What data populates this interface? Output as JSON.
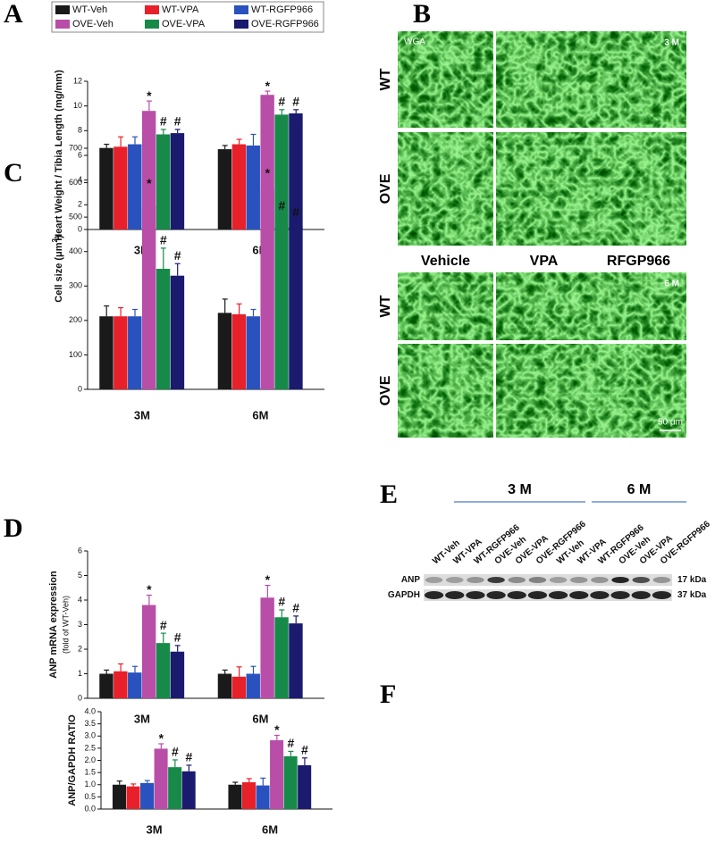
{
  "chart_data": [
    {
      "type": "bar",
      "ylabel": "Heart Weight / Tibia Length (mg/mm)",
      "categories": [
        "3M",
        "6M"
      ],
      "ylim": [
        0,
        12
      ],
      "yticks": [
        0,
        2,
        4,
        6,
        8,
        10,
        12
      ],
      "series": [
        {
          "name": "WT-Veh",
          "color": "#1a1a1a",
          "values": [
            6.6,
            6.5
          ],
          "errors": [
            0.3,
            0.3
          ]
        },
        {
          "name": "WT-VPA",
          "color": "#e8202a",
          "values": [
            6.7,
            6.9
          ],
          "errors": [
            0.8,
            0.4
          ]
        },
        {
          "name": "WT-RGFP966",
          "color": "#2a52be",
          "values": [
            6.9,
            6.8
          ],
          "errors": [
            0.6,
            0.9
          ]
        },
        {
          "name": "OVE-Veh",
          "color": "#b84ea8",
          "values": [
            9.6,
            10.9
          ],
          "errors": [
            0.8,
            0.3
          ],
          "annotations": [
            "*",
            "*"
          ]
        },
        {
          "name": "OVE-VPA",
          "color": "#178a4a",
          "values": [
            7.7,
            9.3
          ],
          "errors": [
            0.4,
            0.4
          ],
          "annotations": [
            "#",
            "#"
          ]
        },
        {
          "name": "OVE-RGFP966",
          "color": "#1a1a6e",
          "values": [
            7.8,
            9.4
          ],
          "errors": [
            0.3,
            0.3
          ],
          "annotations": [
            "#",
            "#"
          ]
        }
      ]
    },
    {
      "type": "bar",
      "ylabel": "Cell size (μm",
      "ylabel_superscript": "2",
      "ylabel_suffix": ")",
      "categories": [
        "3M",
        "6M"
      ],
      "ylim": [
        0,
        700
      ],
      "yticks": [
        0,
        100,
        200,
        300,
        400,
        500,
        600,
        700
      ],
      "series": [
        {
          "color": "#1a1a1a",
          "values": [
            212,
            222
          ],
          "errors": [
            30,
            40
          ]
        },
        {
          "color": "#e8202a",
          "values": [
            212,
            218
          ],
          "errors": [
            25,
            30
          ]
        },
        {
          "color": "#2a52be",
          "values": [
            212,
            212
          ],
          "errors": [
            20,
            20
          ]
        },
        {
          "color": "#b84ea8",
          "values": [
            533,
            582
          ],
          "errors": [
            50,
            30
          ],
          "annotations": [
            "*",
            "*"
          ]
        },
        {
          "color": "#178a4a",
          "values": [
            350,
            470
          ],
          "errors": [
            60,
            40
          ],
          "annotations": [
            "#",
            "#"
          ]
        },
        {
          "color": "#1a1a6e",
          "values": [
            330,
            470
          ],
          "errors": [
            35,
            20
          ],
          "annotations": [
            "#",
            "#"
          ]
        }
      ]
    },
    {
      "type": "bar",
      "ylabel": "ANP mRNA expression",
      "ylabel_note": "(fold of WT-Veh)",
      "categories": [
        "3M",
        "6M"
      ],
      "ylim": [
        0,
        6
      ],
      "yticks": [
        0,
        1,
        2,
        3,
        4,
        5,
        6
      ],
      "series": [
        {
          "color": "#1a1a1a",
          "values": [
            1.0,
            1.0
          ],
          "errors": [
            0.15,
            0.15
          ]
        },
        {
          "color": "#e8202a",
          "values": [
            1.1,
            0.88
          ],
          "errors": [
            0.3,
            0.4
          ]
        },
        {
          "color": "#2a52be",
          "values": [
            1.05,
            1.0
          ],
          "errors": [
            0.25,
            0.3
          ]
        },
        {
          "color": "#b84ea8",
          "values": [
            3.8,
            4.1
          ],
          "errors": [
            0.4,
            0.5
          ],
          "annotations": [
            "*",
            "*"
          ]
        },
        {
          "color": "#178a4a",
          "values": [
            2.25,
            3.3
          ],
          "errors": [
            0.4,
            0.3
          ],
          "annotations": [
            "#",
            "#"
          ]
        },
        {
          "color": "#1a1a6e",
          "values": [
            1.9,
            3.05
          ],
          "errors": [
            0.25,
            0.3
          ],
          "annotations": [
            "#",
            "#"
          ]
        }
      ]
    },
    {
      "type": "bar",
      "ylabel": "ANP/GAPDH RATIO",
      "categories": [
        "3M",
        "6M"
      ],
      "ylim": [
        0,
        4
      ],
      "yticks": [
        {
          "value": 0,
          "label": "0.0"
        },
        0.5,
        {
          "value": 1,
          "label": "1.0"
        },
        1.5,
        {
          "value": 2,
          "label": "2.0"
        },
        2.5,
        {
          "value": 3,
          "label": "3.0"
        },
        3.5,
        {
          "value": 4,
          "label": "4.0"
        }
      ],
      "series": [
        {
          "color": "#1a1a1a",
          "values": [
            1.0,
            1.0
          ],
          "errors": [
            0.15,
            0.1
          ]
        },
        {
          "color": "#e8202a",
          "values": [
            0.93,
            1.1
          ],
          "errors": [
            0.1,
            0.15
          ]
        },
        {
          "color": "#2a52be",
          "values": [
            1.07,
            0.97
          ],
          "errors": [
            0.1,
            0.3
          ]
        },
        {
          "color": "#b84ea8",
          "values": [
            2.48,
            2.83
          ],
          "errors": [
            0.2,
            0.2
          ],
          "annotations": [
            "*",
            "*"
          ]
        },
        {
          "color": "#178a4a",
          "values": [
            1.72,
            2.17
          ],
          "errors": [
            0.3,
            0.2
          ],
          "annotations": [
            "#",
            "#"
          ]
        },
        {
          "color": "#1a1a6e",
          "values": [
            1.55,
            1.8
          ],
          "errors": [
            0.25,
            0.3
          ],
          "annotations": [
            "#",
            "#"
          ]
        }
      ]
    }
  ],
  "figure": {
    "panels": [
      "A",
      "B",
      "C",
      "D",
      "E",
      "F"
    ],
    "micrographs": {
      "stain": "WGA",
      "time_labels": [
        "3 M",
        "6 M"
      ],
      "row_labels": [
        "WT",
        "OVE",
        "WT",
        "OVE"
      ],
      "column_labels": [
        "Vehicle",
        "VPA",
        "RFGP966"
      ],
      "scale_bar": "50 μm"
    },
    "blot": {
      "groups": [
        "3 M",
        "6 M"
      ],
      "lanes": [
        "WT-Veh",
        "WT-VPA",
        "WT-RGFP966",
        "OVE-Veh",
        "OVE-VPA",
        "OVE-RGFP966",
        "WT-Veh",
        "WT-VPA",
        "WT-RGFP966",
        "OVE-Veh",
        "OVE-VPA",
        "OVE-RGFP966"
      ],
      "rows": [
        "ANP",
        "GAPDH"
      ],
      "sizes": [
        "17 kDa",
        "37 kDa"
      ]
    }
  }
}
